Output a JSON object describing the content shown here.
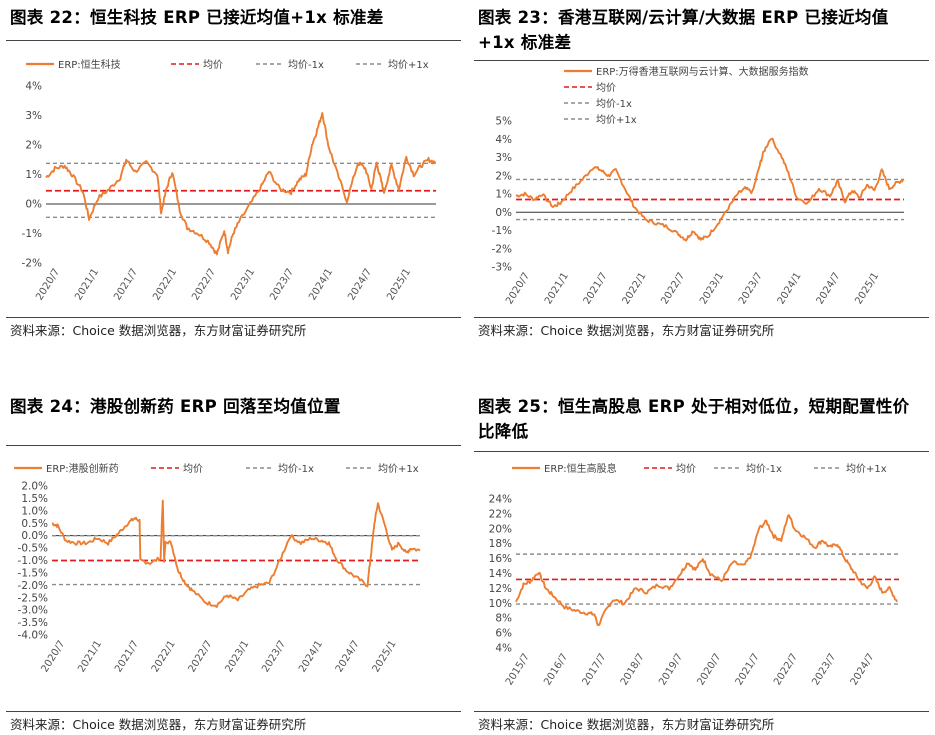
{
  "source": "资料来源：Choice 数据浏览器，东方财富证券研究所",
  "chart_data": [
    {
      "id": "p22",
      "type": "line",
      "title": "图表 22：恒生科技 ERP 已接近均值+1x 标准差",
      "ylim": [
        -2,
        4
      ],
      "yticks": [
        "-2%",
        "-1%",
        "0%",
        "1%",
        "2%",
        "3%",
        "4%"
      ],
      "xticks": [
        "2020/7",
        "2021/1",
        "2021/7",
        "2022/1",
        "2022/7",
        "2023/1",
        "2023/7",
        "2024/1",
        "2024/7",
        "2025/1"
      ],
      "x_range": [
        2020.5,
        2025.75
      ],
      "legend": [
        "ERP:恒生科技",
        "均价",
        "均价-1x",
        "均价+1x"
      ],
      "mean": 0.45,
      "minus1": -0.45,
      "plus1": 1.38,
      "x": [
        2020.5,
        2020.62,
        2020.75,
        2020.85,
        2021.0,
        2021.08,
        2021.2,
        2021.35,
        2021.5,
        2021.58,
        2021.7,
        2021.85,
        2022.0,
        2022.05,
        2022.12,
        2022.2,
        2022.3,
        2022.4,
        2022.55,
        2022.7,
        2022.8,
        2022.9,
        2022.95,
        2023.02,
        2023.1,
        2023.25,
        2023.4,
        2023.5,
        2023.65,
        2023.8,
        2023.9,
        2024.0,
        2024.08,
        2024.15,
        2024.22,
        2024.3,
        2024.4,
        2024.55,
        2024.7,
        2024.8,
        2024.88,
        2024.95,
        2025.0,
        2025.05,
        2025.15,
        2025.25,
        2025.35,
        2025.45,
        2025.55,
        2025.65,
        2025.75
      ],
      "y": [
        0.9,
        1.2,
        1.3,
        1.0,
        0.4,
        -0.5,
        0.2,
        0.5,
        0.9,
        1.5,
        1.1,
        1.4,
        1.0,
        -0.3,
        0.5,
        1.1,
        -0.2,
        -0.8,
        -1.0,
        -1.3,
        -1.7,
        -0.9,
        -1.6,
        -1.0,
        -0.6,
        0.0,
        0.6,
        1.1,
        0.5,
        0.4,
        0.8,
        1.0,
        2.0,
        2.5,
        3.1,
        2.0,
        1.2,
        0.1,
        1.4,
        1.2,
        0.5,
        1.4,
        0.9,
        0.4,
        1.3,
        0.5,
        1.6,
        1.0,
        1.3,
        1.5,
        1.4
      ]
    },
    {
      "id": "p23",
      "type": "line",
      "title": "图表 23：香港互联网/云计算/大数据 ERP 已接近均值+1x 标准差",
      "ylim": [
        -3,
        5
      ],
      "yticks": [
        "-3%",
        "-2%",
        "-1%",
        "0%",
        "1%",
        "2%",
        "3%",
        "4%",
        "5%"
      ],
      "xticks": [
        "2020/7",
        "2021/1",
        "2021/7",
        "2022/1",
        "2022/7",
        "2023/1",
        "2023/7",
        "2024/1",
        "2024/7",
        "2025/1"
      ],
      "x_range": [
        2020.5,
        2025.75
      ],
      "legend": [
        "ERP:万得香港互联网与云计算、大数据服务指数",
        "均价",
        "均价-1x",
        "均价+1x"
      ],
      "mean": 0.7,
      "minus1": -0.4,
      "plus1": 1.8,
      "x": [
        2020.5,
        2020.62,
        2020.75,
        2020.85,
        2021.0,
        2021.1,
        2021.25,
        2021.4,
        2021.55,
        2021.65,
        2021.75,
        2021.85,
        2022.0,
        2022.1,
        2022.25,
        2022.4,
        2022.55,
        2022.7,
        2022.8,
        2022.9,
        2023.0,
        2023.1,
        2023.25,
        2023.35,
        2023.5,
        2023.6,
        2023.7,
        2023.8,
        2023.85,
        2023.95,
        2024.1,
        2024.2,
        2024.3,
        2024.45,
        2024.6,
        2024.75,
        2024.85,
        2024.95,
        2025.05,
        2025.15,
        2025.25,
        2025.35,
        2025.45,
        2025.55,
        2025.65,
        2025.75
      ],
      "y": [
        0.9,
        1.0,
        0.7,
        1.0,
        0.3,
        0.5,
        1.2,
        1.8,
        2.5,
        2.3,
        2.0,
        2.3,
        1.1,
        0.3,
        -0.4,
        -0.6,
        -0.8,
        -1.2,
        -1.5,
        -1.0,
        -1.5,
        -1.3,
        -0.5,
        0.1,
        1.0,
        1.3,
        1.1,
        2.6,
        3.3,
        4.1,
        3.0,
        2.0,
        0.8,
        0.5,
        1.3,
        0.9,
        1.7,
        0.6,
        1.2,
        0.8,
        1.5,
        1.2,
        2.3,
        1.3,
        1.6,
        1.8
      ]
    },
    {
      "id": "p24",
      "type": "line",
      "title": "图表 24：港股创新药 ERP 回落至均值位置",
      "ylim": [
        -4,
        2
      ],
      "yticks": [
        "-4.0%",
        "-3.5%",
        "-3.0%",
        "-2.5%",
        "-2.0%",
        "-1.5%",
        "-1.0%",
        "-0.5%",
        "0.0%",
        "0.5%",
        "1.0%",
        "1.5%",
        "2.0%"
      ],
      "xticks": [
        "2020/7",
        "2021/1",
        "2021/7",
        "2022/1",
        "2022/7",
        "2023/1",
        "2023/7",
        "2024/1",
        "2024/7",
        "2025/1"
      ],
      "x_range": [
        2020.5,
        2025.75
      ],
      "legend": [
        "ERP:港股创新药",
        "均价",
        "均价-1x",
        "均价+1x"
      ],
      "mean": -1.0,
      "minus1": -1.97,
      "plus1": 0.0,
      "x": [
        2020.5,
        2020.58,
        2020.7,
        2020.85,
        2021.0,
        2021.15,
        2021.3,
        2021.45,
        2021.58,
        2021.68,
        2021.75,
        2021.76,
        2021.9,
        2022.05,
        2022.08,
        2022.1,
        2022.12,
        2022.2,
        2022.3,
        2022.4,
        2022.5,
        2022.7,
        2022.85,
        2023.0,
        2023.15,
        2023.3,
        2023.45,
        2023.6,
        2023.75,
        2023.9,
        2024.05,
        2024.2,
        2024.35,
        2024.45,
        2024.55,
        2024.7,
        2024.85,
        2025.0,
        2025.05,
        2025.1,
        2025.15,
        2025.25,
        2025.35,
        2025.45,
        2025.55,
        2025.62,
        2025.75
      ],
      "y": [
        0.5,
        0.4,
        -0.2,
        -0.3,
        -0.3,
        -0.1,
        -0.3,
        0.1,
        0.5,
        0.7,
        0.6,
        -1.0,
        -1.1,
        -0.9,
        1.4,
        -1.0,
        -0.2,
        -0.3,
        -1.4,
        -1.9,
        -2.2,
        -2.7,
        -2.8,
        -2.4,
        -2.6,
        -2.2,
        -2.0,
        -1.9,
        -1.0,
        0.0,
        -0.3,
        -0.1,
        -0.2,
        -0.3,
        -0.9,
        -1.4,
        -1.7,
        -2.0,
        -0.8,
        0.5,
        1.3,
        0.4,
        -0.6,
        -0.3,
        -0.7,
        -0.5,
        -0.6
      ]
    },
    {
      "id": "p25",
      "type": "line",
      "title": "图表 25：恒生高股息 ERP 处于相对低位，短期配置性价比降低",
      "ylim": [
        4,
        24
      ],
      "yticks": [
        "4%",
        "6%",
        "8%",
        "10%",
        "12%",
        "14%",
        "16%",
        "18%",
        "20%",
        "22%",
        "24%"
      ],
      "xticks": [
        "2015/7",
        "2016/7",
        "2017/7",
        "2018/7",
        "2019/7",
        "2020/7",
        "2021/7",
        "2022/7",
        "2023/7",
        "2024/7"
      ],
      "x_range": [
        2015.5,
        2025.75
      ],
      "legend": [
        "ERP:恒生高股息",
        "均价",
        "均价-1x",
        "均价+1x"
      ],
      "mean": 13.2,
      "minus1": 9.9,
      "plus1": 16.6,
      "x": [
        2015.5,
        2015.7,
        2015.9,
        2016.1,
        2016.3,
        2016.5,
        2016.8,
        2017.1,
        2017.4,
        2017.6,
        2017.7,
        2017.9,
        2018.1,
        2018.4,
        2018.7,
        2019.0,
        2019.3,
        2019.6,
        2019.9,
        2020.1,
        2020.3,
        2020.5,
        2020.7,
        2021.0,
        2021.3,
        2021.6,
        2021.8,
        2022.0,
        2022.2,
        2022.4,
        2022.6,
        2022.8,
        2022.95,
        2023.2,
        2023.5,
        2023.7,
        2023.9,
        2024.1,
        2024.3,
        2024.5,
        2024.7,
        2024.9,
        2025.1,
        2025.3,
        2025.5,
        2025.7
      ],
      "y": [
        10.2,
        12.5,
        13.0,
        14.2,
        12.0,
        11.0,
        9.5,
        9.0,
        8.7,
        8.5,
        7.0,
        9.0,
        10.5,
        10.0,
        12.0,
        11.5,
        12.5,
        12.0,
        14.0,
        15.5,
        14.5,
        16.0,
        14.0,
        13.0,
        15.5,
        15.0,
        16.5,
        20.0,
        21.0,
        19.0,
        18.5,
        22.0,
        20.0,
        19.0,
        17.5,
        18.5,
        17.5,
        18.0,
        16.0,
        14.5,
        13.0,
        12.0,
        13.5,
        11.5,
        12.0,
        10.2
      ]
    }
  ]
}
